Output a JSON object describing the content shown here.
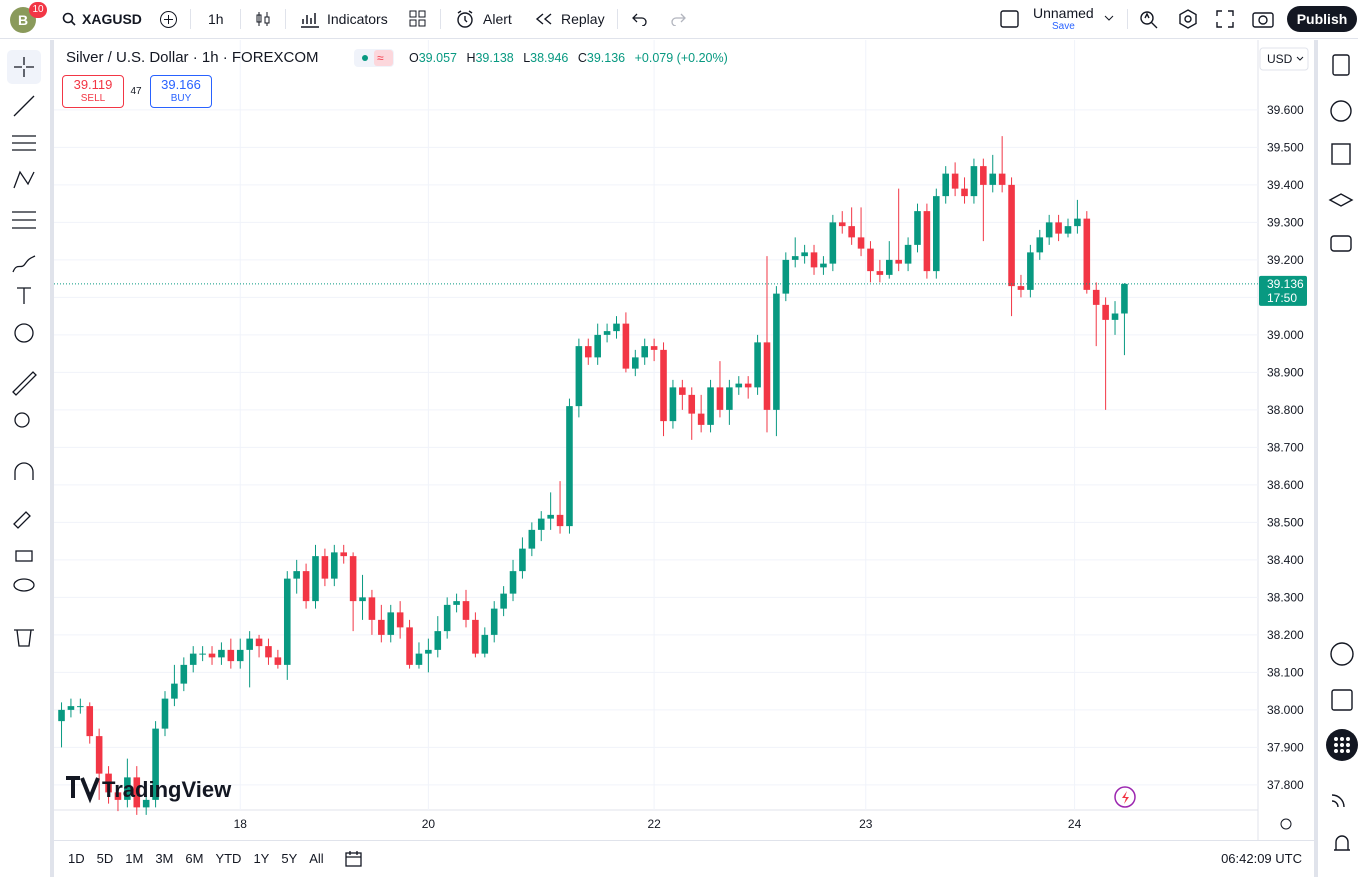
{
  "header": {
    "avatar": "B",
    "badge": "10",
    "symbol": "XAGUSD",
    "interval": "1h",
    "indicators": "Indicators",
    "alert": "Alert",
    "replay": "Replay",
    "layout_name": "Unnamed",
    "save": "Save",
    "publish": "Publish"
  },
  "legend": {
    "title": "Silver / U.S. Dollar · 1h · FOREXCOM",
    "o": "O",
    "h": "H",
    "l": "L",
    "c": "C",
    "change": "+0.079 (+0.20%)"
  },
  "trade": {
    "sell_price": "39.119",
    "sell": "SELL",
    "spread": "47",
    "buy_price": "39.166",
    "buy": "BUY"
  },
  "price_scale": {
    "currency": "USD",
    "countdown": "17:50"
  },
  "watermark": "TradingView",
  "bottom": {
    "ranges": [
      "1D",
      "5D",
      "1M",
      "3M",
      "6M",
      "YTD",
      "1Y",
      "5Y",
      "All"
    ],
    "clock": "06:42:09 UTC"
  },
  "chart_data": {
    "type": "candlestick",
    "up_color": "#089981",
    "down_color": "#f23645",
    "grid": true,
    "xlim": [
      -0.8,
      127.2
    ],
    "xticks": [
      {
        "value": 19,
        "label": "18"
      },
      {
        "value": 39,
        "label": "20"
      },
      {
        "value": 63,
        "label": "22"
      },
      {
        "value": 85.5,
        "label": "23"
      },
      {
        "value": 107.7,
        "label": "24"
      }
    ],
    "ylim": [
      37.733,
      39.773
    ],
    "yticks": [
      {
        "value": 37.8,
        "label": "37.800"
      },
      {
        "value": 37.9,
        "label": "37.900"
      },
      {
        "value": 38.0,
        "label": "38.000"
      },
      {
        "value": 38.1,
        "label": "38.100"
      },
      {
        "value": 38.2,
        "label": "38.200"
      },
      {
        "value": 38.3,
        "label": "38.300"
      },
      {
        "value": 38.4,
        "label": "38.400"
      },
      {
        "value": 38.5,
        "label": "38.500"
      },
      {
        "value": 38.6,
        "label": "38.600"
      },
      {
        "value": 38.7,
        "label": "38.700"
      },
      {
        "value": 38.8,
        "label": "38.800"
      },
      {
        "value": 38.9,
        "label": "38.900"
      },
      {
        "value": 39.0,
        "label": "39.000"
      },
      {
        "value": 39.1,
        "label": "39.100"
      },
      {
        "value": 39.2,
        "label": "39.200"
      },
      {
        "value": 39.3,
        "label": "39.300"
      },
      {
        "value": 39.4,
        "label": "39.400"
      },
      {
        "value": 39.5,
        "label": "39.500"
      },
      {
        "value": 39.6,
        "label": "39.600"
      }
    ],
    "open": [
      37.97,
      38.0,
      38.01,
      38.01,
      37.93,
      37.83,
      37.78,
      37.76,
      37.82,
      37.74,
      37.76,
      37.95,
      38.03,
      38.07,
      38.12,
      38.15,
      38.15,
      38.14,
      38.16,
      38.13,
      38.16,
      38.19,
      38.17,
      38.14,
      38.12,
      38.35,
      38.37,
      38.29,
      38.41,
      38.35,
      38.42,
      38.41,
      38.29,
      38.3,
      38.24,
      38.2,
      38.26,
      38.22,
      38.12,
      38.15,
      38.16,
      38.21,
      38.28,
      38.29,
      38.24,
      38.15,
      38.2,
      38.27,
      38.31,
      38.37,
      38.43,
      38.48,
      38.51,
      38.52,
      38.49,
      38.81,
      38.97,
      38.94,
      39.0,
      39.01,
      39.03,
      38.91,
      38.94,
      38.97,
      38.96,
      38.77,
      38.86,
      38.84,
      38.79,
      38.76,
      38.86,
      38.8,
      38.86,
      38.87,
      38.86,
      38.98,
      38.8,
      39.11,
      39.2,
      39.21,
      39.22,
      39.18,
      39.19,
      39.3,
      39.29,
      39.26,
      39.23,
      39.17,
      39.16,
      39.2,
      39.19,
      39.24,
      39.33,
      39.17,
      39.37,
      39.43,
      39.39,
      39.37,
      39.45,
      39.4,
      39.43,
      39.4,
      39.13,
      39.12,
      39.22,
      39.26,
      39.3,
      39.27,
      39.29,
      39.31,
      39.12,
      39.08,
      39.04,
      39.057
    ],
    "high": [
      38.02,
      38.03,
      38.03,
      38.02,
      37.95,
      37.85,
      37.8,
      37.87,
      37.85,
      37.79,
      37.97,
      38.05,
      38.12,
      38.14,
      38.17,
      38.17,
      38.17,
      38.18,
      38.19,
      38.19,
      38.21,
      38.2,
      38.19,
      38.16,
      38.37,
      38.4,
      38.39,
      38.44,
      38.43,
      38.44,
      38.44,
      38.42,
      38.36,
      38.32,
      38.28,
      38.28,
      38.29,
      38.24,
      38.18,
      38.19,
      38.25,
      38.3,
      38.31,
      38.32,
      38.26,
      38.22,
      38.29,
      38.33,
      38.4,
      38.46,
      38.5,
      38.53,
      38.58,
      38.61,
      38.83,
      38.99,
      38.99,
      39.03,
      39.03,
      39.05,
      39.06,
      38.96,
      38.99,
      38.99,
      38.98,
      38.88,
      38.88,
      38.86,
      38.84,
      38.88,
      38.93,
      38.88,
      38.89,
      38.89,
      39.0,
      39.21,
      39.13,
      39.22,
      39.26,
      39.24,
      39.24,
      39.21,
      39.32,
      39.33,
      39.34,
      39.34,
      39.25,
      39.2,
      39.25,
      39.39,
      39.26,
      39.35,
      39.35,
      39.39,
      39.45,
      39.46,
      39.42,
      39.47,
      39.47,
      39.48,
      39.53,
      39.42,
      39.16,
      39.24,
      39.28,
      39.32,
      39.32,
      39.31,
      39.36,
      39.33,
      39.14,
      39.1,
      39.09,
      39.138
    ],
    "low": [
      37.9,
      37.98,
      37.99,
      37.91,
      37.76,
      37.75,
      37.73,
      37.74,
      37.72,
      37.72,
      37.74,
      37.93,
      38.01,
      38.05,
      38.1,
      38.13,
      38.12,
      38.12,
      38.11,
      38.11,
      38.06,
      38.14,
      38.12,
      38.11,
      38.08,
      38.31,
      38.27,
      38.27,
      38.33,
      38.33,
      38.39,
      38.21,
      38.24,
      38.2,
      38.18,
      38.18,
      38.19,
      38.11,
      38.11,
      38.1,
      38.14,
      38.19,
      38.26,
      38.22,
      38.14,
      38.14,
      38.18,
      38.25,
      38.29,
      38.35,
      38.41,
      38.45,
      38.48,
      38.47,
      38.47,
      38.78,
      38.92,
      38.92,
      38.98,
      38.99,
      38.9,
      38.89,
      38.92,
      38.93,
      38.73,
      38.75,
      38.8,
      38.72,
      38.74,
      38.74,
      38.78,
      38.76,
      38.84,
      38.83,
      38.84,
      38.74,
      38.73,
      39.09,
      39.18,
      39.19,
      39.16,
      39.16,
      39.17,
      39.27,
      39.24,
      39.21,
      39.14,
      39.14,
      39.15,
      39.17,
      39.17,
      39.22,
      39.15,
      39.15,
      39.35,
      39.37,
      39.35,
      39.35,
      39.25,
      39.38,
      39.38,
      39.05,
      39.1,
      39.1,
      39.2,
      39.24,
      39.25,
      39.26,
      39.27,
      39.11,
      38.97,
      38.8,
      39.0,
      38.946
    ],
    "close": [
      38.0,
      38.01,
      38.01,
      37.93,
      37.83,
      37.78,
      37.76,
      37.82,
      37.74,
      37.76,
      37.95,
      38.03,
      38.07,
      38.12,
      38.15,
      38.15,
      38.14,
      38.16,
      38.13,
      38.16,
      38.19,
      38.17,
      38.14,
      38.12,
      38.35,
      38.37,
      38.29,
      38.41,
      38.35,
      38.42,
      38.41,
      38.29,
      38.3,
      38.24,
      38.2,
      38.26,
      38.22,
      38.12,
      38.15,
      38.16,
      38.21,
      38.28,
      38.29,
      38.24,
      38.15,
      38.2,
      38.27,
      38.31,
      38.37,
      38.43,
      38.48,
      38.51,
      38.52,
      38.49,
      38.81,
      38.97,
      38.94,
      39.0,
      39.01,
      39.03,
      38.91,
      38.94,
      38.97,
      38.96,
      38.77,
      38.86,
      38.84,
      38.79,
      38.76,
      38.86,
      38.8,
      38.86,
      38.87,
      38.86,
      38.98,
      38.8,
      39.11,
      39.2,
      39.21,
      39.22,
      39.18,
      39.19,
      39.3,
      39.29,
      39.26,
      39.23,
      39.17,
      39.16,
      39.2,
      39.19,
      39.24,
      39.33,
      39.17,
      39.37,
      39.43,
      39.39,
      39.37,
      39.45,
      39.4,
      39.43,
      39.4,
      39.13,
      39.12,
      39.22,
      39.26,
      39.3,
      39.27,
      39.29,
      39.31,
      39.12,
      39.08,
      39.04,
      39.057,
      39.136
    ]
  }
}
